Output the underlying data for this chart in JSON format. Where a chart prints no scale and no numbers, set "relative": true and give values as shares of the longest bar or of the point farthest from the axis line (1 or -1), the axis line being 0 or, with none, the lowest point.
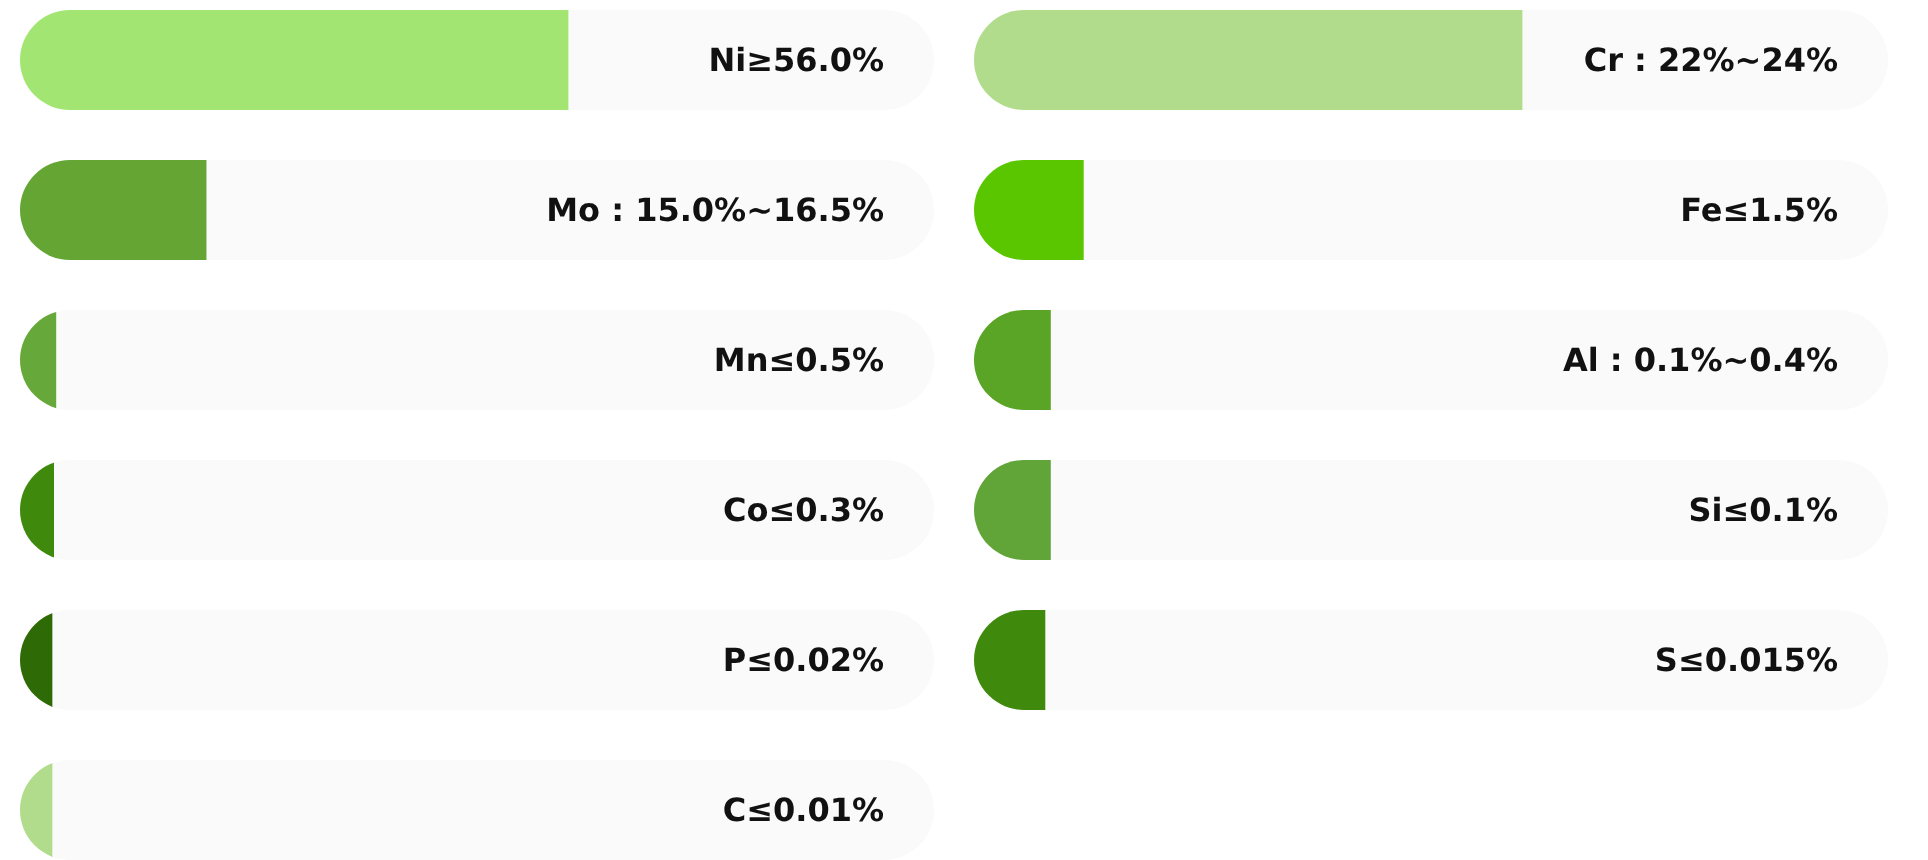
{
  "chart_data": [
    {
      "type": "bar",
      "orientation": "horizontal",
      "relative": true,
      "categories": [
        "Ni≥56.0%",
        "Mo : 15.0%~16.5%",
        "Mn≤0.5%",
        "Co≤0.3%",
        "P≤0.02%",
        "C≤0.01%"
      ],
      "values": [
        1,
        0.34,
        0.066,
        0.062,
        0.059,
        0.059
      ],
      "colors": [
        "#a3e572",
        "#64a534",
        "#66a83a",
        "#3f8a0c",
        "#2e6a05",
        "#b1dc8b"
      ]
    },
    {
      "type": "bar",
      "orientation": "horizontal",
      "relative": true,
      "categories": [
        "Cr : 22%~24%",
        "Fe≤1.5%",
        "Al : 0.1%~0.4%",
        "Si≤0.1%",
        "S≤0.015%"
      ],
      "values": [
        1,
        0.2,
        0.14,
        0.14,
        0.13
      ],
      "colors": [
        "#b1dc8b",
        "#59c600",
        "#5aa526",
        "#61a539",
        "#3f8a0c"
      ]
    }
  ]
}
